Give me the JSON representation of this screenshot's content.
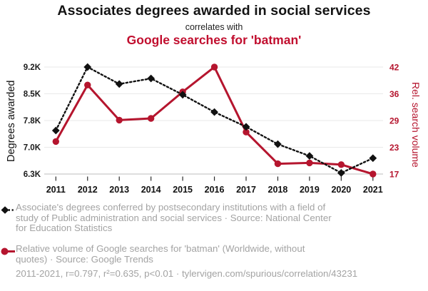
{
  "header": {
    "title": "Associates degrees awarded in social services",
    "connector": "correlates with",
    "subtitle": "Google searches for 'batman'"
  },
  "colors": {
    "red": "#b5152e",
    "title_red": "#c10e2e",
    "black_series": "#111111",
    "legend_gray": "#a3a3a3",
    "gridline": "#e9e9e9"
  },
  "chart_data": {
    "type": "line",
    "x": [
      2011,
      2012,
      2013,
      2014,
      2015,
      2016,
      2017,
      2018,
      2019,
      2020,
      2021
    ],
    "x_ticks": [
      "2011",
      "2012",
      "2013",
      "2014",
      "2015",
      "2016",
      "2017",
      "2018",
      "2019",
      "2020",
      "2021"
    ],
    "series": [
      {
        "name": "Associate's degrees in public administration and social services",
        "axis": "left",
        "color": "#111111",
        "style": "dotted-diamond",
        "values": [
          7480,
          9200,
          8740,
          8890,
          8450,
          7980,
          7580,
          7110,
          6790,
          6330,
          6730
        ]
      },
      {
        "name": "Google searches for 'batman' (relative volume)",
        "axis": "right",
        "color": "#b5152e",
        "style": "solid-circle",
        "values": [
          24.6,
          37.8,
          29.6,
          30.0,
          36.2,
          42,
          26.8,
          19.4,
          19.6,
          19.2,
          17
        ]
      }
    ],
    "left_axis": {
      "label": "Degrees awarded",
      "ticks": [
        "9.2K",
        "8.5K",
        "7.8K",
        "7.0K",
        "6.3K"
      ],
      "range": [
        6300,
        9200
      ]
    },
    "right_axis": {
      "label": "Rel. search volume",
      "ticks": [
        "42",
        "36",
        "29",
        "23",
        "17"
      ],
      "range": [
        17,
        42
      ]
    },
    "grid": true,
    "legend_position": "below"
  },
  "legend": {
    "degrees": {
      "text": "Associate's degrees conferred by postsecondary institutions with a field of\nstudy of Public administration and social services · Source: National Center\nfor Education Statistics"
    },
    "searches": {
      "text": "Relative volume of Google searches for 'batman' (Worldwide, without\nquotes) · Source: Google Trends"
    }
  },
  "footer": {
    "stats": "2011-2021, r=0.797, r²=0.635, p<0.01 · tylervigen.com/spurious/correlation/43231"
  }
}
